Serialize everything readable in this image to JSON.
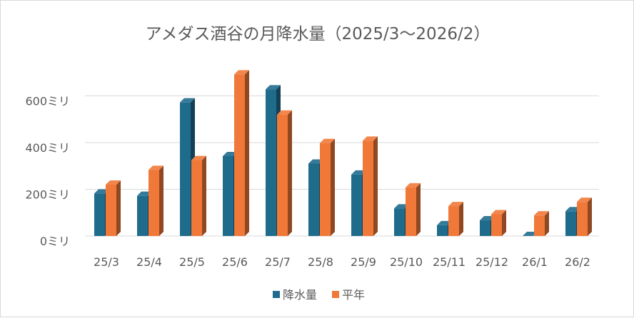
{
  "chart_data": {
    "type": "bar",
    "title": "アメダス酒谷の月降水量（2025/3～2026/2）",
    "xlabel": "",
    "ylabel": "",
    "categories": [
      "25/3",
      "25/4",
      "25/5",
      "25/6",
      "25/7",
      "25/8",
      "25/9",
      "25/10",
      "25/11",
      "25/12",
      "26/1",
      "26/2"
    ],
    "series": [
      {
        "name": "降水量",
        "color": "#1f6b8c",
        "values": [
          182,
          172,
          572,
          342,
          628,
          310,
          263,
          118,
          46,
          67,
          0,
          106
        ]
      },
      {
        "name": "平年",
        "color": "#f07838",
        "values": [
          220,
          283,
          325,
          692,
          520,
          398,
          408,
          208,
          128,
          93,
          88,
          146
        ]
      }
    ],
    "ylim": [
      0,
      700
    ],
    "yticks": [
      {
        "value": 0,
        "label": "0ミリ"
      },
      {
        "value": 200,
        "label": "200ミリ"
      },
      {
        "value": 400,
        "label": "400ミリ"
      },
      {
        "value": 600,
        "label": "600ミリ"
      }
    ],
    "grid": true,
    "legend": "bottom",
    "style": "3d-column"
  }
}
